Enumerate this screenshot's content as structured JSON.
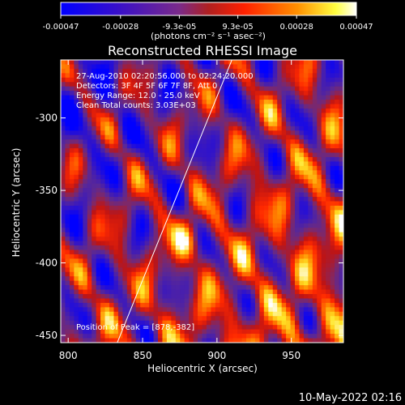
{
  "colorbar": {
    "ticks": [
      -0.00047,
      -0.00028,
      -9.3e-05,
      9.3e-05,
      0.00028,
      0.00047
    ],
    "tick_labels": [
      "-0.00047",
      "-0.00028",
      "-9.3e-05",
      "9.3e-05",
      "0.00028",
      "0.00047"
    ],
    "unit_label": "(photons cm⁻² s⁻¹ asec⁻²)",
    "range": [
      -0.00047,
      0.00047
    ],
    "colors": [
      "#0000ff",
      "#5a1e9c",
      "#9a3a6e",
      "#ff2000",
      "#ff8c00",
      "#ffff40",
      "#ffffff"
    ]
  },
  "chart_data": {
    "type": "heatmap",
    "title": "Reconstructed RHESSI Image",
    "xlabel": "Heliocentric X (arcsec)",
    "ylabel": "Heliocentric Y (arcsec)",
    "xlim": [
      795,
      985
    ],
    "ylim": [
      -455,
      -260
    ],
    "x_ticks": [
      800,
      850,
      900,
      950
    ],
    "y_ticks": [
      -300,
      -350,
      -400,
      -450
    ],
    "info_lines": [
      "27-Aug-2010 02:20:56.000 to 02:24:20.000",
      "Detectors: 3F 4F 5F 6F 7F 8F, Att 0",
      "Energy Range: 12.0 - 25.0 keV",
      "Clean     Total counts: 3.03E+03"
    ],
    "peak_label": "Position of Peak = [878,-382]",
    "peak": [
      878,
      -382
    ],
    "limb_line": [
      [
        833,
        -455
      ],
      [
        910,
        -260
      ]
    ]
  },
  "footer": {
    "date": "10-May-2022 02:16"
  }
}
